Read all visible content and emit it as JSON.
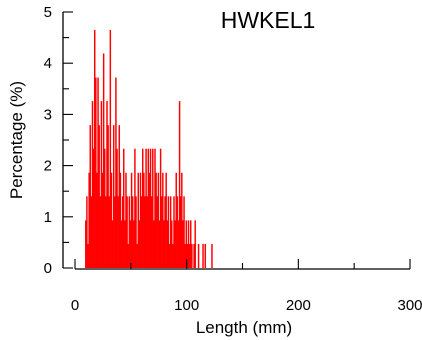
{
  "chart_data": {
    "type": "bar",
    "title": "HWKEL1",
    "xlabel": "Length (mm)",
    "ylabel": "Percentage (%)",
    "xlim": [
      0,
      300
    ],
    "ylim": [
      0,
      5
    ],
    "xticks": [
      0,
      100,
      200,
      300
    ],
    "yticks": [
      0,
      1,
      2,
      3,
      4,
      5
    ],
    "grid": false,
    "legend": "none",
    "bar_color": "#ff0000",
    "bin_width_mm": 1,
    "bins": [
      {
        "x": 9,
        "y": 0.93
      },
      {
        "x": 10,
        "y": 1.4
      },
      {
        "x": 11,
        "y": 0.47
      },
      {
        "x": 12,
        "y": 1.86
      },
      {
        "x": 13,
        "y": 2.79
      },
      {
        "x": 14,
        "y": 1.4
      },
      {
        "x": 15,
        "y": 3.26
      },
      {
        "x": 16,
        "y": 2.33
      },
      {
        "x": 17,
        "y": 4.65
      },
      {
        "x": 18,
        "y": 3.72
      },
      {
        "x": 19,
        "y": 1.86
      },
      {
        "x": 20,
        "y": 3.72
      },
      {
        "x": 21,
        "y": 2.79
      },
      {
        "x": 22,
        "y": 1.4
      },
      {
        "x": 23,
        "y": 3.26
      },
      {
        "x": 24,
        "y": 1.86
      },
      {
        "x": 25,
        "y": 4.19
      },
      {
        "x": 26,
        "y": 2.33
      },
      {
        "x": 27,
        "y": 1.4
      },
      {
        "x": 28,
        "y": 3.26
      },
      {
        "x": 29,
        "y": 2.79
      },
      {
        "x": 30,
        "y": 1.4
      },
      {
        "x": 31,
        "y": 4.65
      },
      {
        "x": 32,
        "y": 1.86
      },
      {
        "x": 33,
        "y": 0.93
      },
      {
        "x": 34,
        "y": 2.79
      },
      {
        "x": 35,
        "y": 1.4
      },
      {
        "x": 36,
        "y": 3.72
      },
      {
        "x": 37,
        "y": 2.33
      },
      {
        "x": 38,
        "y": 1.4
      },
      {
        "x": 39,
        "y": 2.79
      },
      {
        "x": 40,
        "y": 1.86
      },
      {
        "x": 41,
        "y": 0.93
      },
      {
        "x": 42,
        "y": 1.4
      },
      {
        "x": 43,
        "y": 2.33
      },
      {
        "x": 44,
        "y": 0.93
      },
      {
        "x": 45,
        "y": 1.86
      },
      {
        "x": 46,
        "y": 1.4
      },
      {
        "x": 47,
        "y": 0.47
      },
      {
        "x": 48,
        "y": 1.4
      },
      {
        "x": 49,
        "y": 0.93
      },
      {
        "x": 50,
        "y": 1.86
      },
      {
        "x": 51,
        "y": 1.4
      },
      {
        "x": 52,
        "y": 0.93
      },
      {
        "x": 53,
        "y": 2.33
      },
      {
        "x": 54,
        "y": 1.4
      },
      {
        "x": 55,
        "y": 0.47
      },
      {
        "x": 56,
        "y": 1.86
      },
      {
        "x": 57,
        "y": 0.93
      },
      {
        "x": 58,
        "y": 1.86
      },
      {
        "x": 59,
        "y": 1.4
      },
      {
        "x": 60,
        "y": 2.33
      },
      {
        "x": 61,
        "y": 1.86
      },
      {
        "x": 62,
        "y": 1.4
      },
      {
        "x": 63,
        "y": 2.33
      },
      {
        "x": 64,
        "y": 1.4
      },
      {
        "x": 65,
        "y": 2.33
      },
      {
        "x": 66,
        "y": 1.86
      },
      {
        "x": 67,
        "y": 2.33
      },
      {
        "x": 68,
        "y": 1.4
      },
      {
        "x": 69,
        "y": 2.33
      },
      {
        "x": 70,
        "y": 0.93
      },
      {
        "x": 71,
        "y": 2.33
      },
      {
        "x": 72,
        "y": 1.86
      },
      {
        "x": 73,
        "y": 1.4
      },
      {
        "x": 74,
        "y": 1.86
      },
      {
        "x": 75,
        "y": 0.93
      },
      {
        "x": 76,
        "y": 2.33
      },
      {
        "x": 77,
        "y": 1.4
      },
      {
        "x": 78,
        "y": 1.86
      },
      {
        "x": 79,
        "y": 0.93
      },
      {
        "x": 80,
        "y": 1.4
      },
      {
        "x": 81,
        "y": 1.86
      },
      {
        "x": 82,
        "y": 0.93
      },
      {
        "x": 83,
        "y": 1.4
      },
      {
        "x": 84,
        "y": 0.47
      },
      {
        "x": 85,
        "y": 1.4
      },
      {
        "x": 86,
        "y": 0.93
      },
      {
        "x": 87,
        "y": 0.47
      },
      {
        "x": 88,
        "y": 1.4
      },
      {
        "x": 89,
        "y": 0.93
      },
      {
        "x": 90,
        "y": 1.86
      },
      {
        "x": 91,
        "y": 1.4
      },
      {
        "x": 92,
        "y": 0.93
      },
      {
        "x": 93,
        "y": 3.26
      },
      {
        "x": 94,
        "y": 1.4
      },
      {
        "x": 95,
        "y": 1.86
      },
      {
        "x": 96,
        "y": 0.93
      },
      {
        "x": 97,
        "y": 1.4
      },
      {
        "x": 98,
        "y": 0.47
      },
      {
        "x": 99,
        "y": 0.93
      },
      {
        "x": 100,
        "y": 0.47
      },
      {
        "x": 101,
        "y": 0.93
      },
      {
        "x": 102,
        "y": 0.47
      },
      {
        "x": 103,
        "y": 0.93
      },
      {
        "x": 104,
        "y": 0.47
      },
      {
        "x": 106,
        "y": 0.47
      },
      {
        "x": 107,
        "y": 0.93
      },
      {
        "x": 110,
        "y": 0.47
      },
      {
        "x": 114,
        "y": 0.47
      },
      {
        "x": 116,
        "y": 0.47
      },
      {
        "x": 122,
        "y": 0.47
      }
    ]
  }
}
